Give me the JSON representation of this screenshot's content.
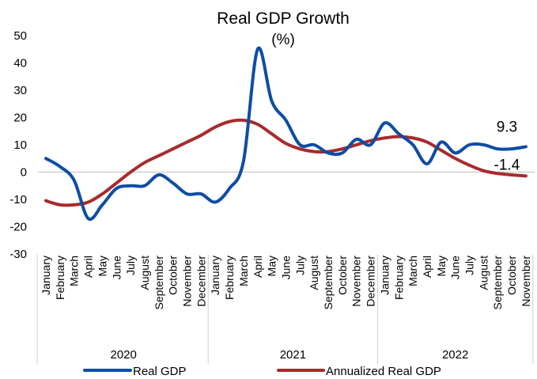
{
  "chart_data": {
    "type": "line",
    "title": "Real GDP Growth",
    "subtitle": "(%)",
    "ylim": [
      -30,
      50
    ],
    "yticks": [
      50,
      40,
      30,
      20,
      10,
      0,
      -10,
      -20,
      -30
    ],
    "categories": [
      "January",
      "February",
      "March",
      "April",
      "May",
      "June",
      "July",
      "August",
      "September",
      "October",
      "November",
      "December",
      "January",
      "February",
      "March",
      "April",
      "May",
      "June",
      "July",
      "August",
      "September",
      "October",
      "November",
      "December",
      "January",
      "February",
      "March",
      "April",
      "May",
      "June",
      "July",
      "August",
      "September",
      "October",
      "November"
    ],
    "years": [
      {
        "label": "2020",
        "count": 12
      },
      {
        "label": "2021",
        "count": 12
      },
      {
        "label": "2022",
        "count": 11
      }
    ],
    "series": [
      {
        "name": "Real GDP",
        "color": "#0E4DA4",
        "values": [
          5,
          2,
          -3,
          -17,
          -12,
          -6,
          -5,
          -5,
          -1,
          -4,
          -8,
          -8,
          -11,
          -6,
          4,
          45,
          26,
          19,
          10,
          10,
          7,
          7,
          12,
          10,
          18,
          14,
          10,
          3,
          11,
          7,
          10,
          10,
          8.5,
          8.5,
          9.3
        ]
      },
      {
        "name": "Annualized Real GDP",
        "color": "#A82A2C",
        "values": [
          -10.5,
          -12,
          -12,
          -11,
          -8,
          -4,
          0,
          3.5,
          6,
          8.5,
          11,
          13.5,
          16.5,
          18.5,
          19,
          17.5,
          14,
          10.5,
          8.5,
          7.5,
          7.5,
          8.5,
          10,
          11.5,
          12.5,
          13,
          12.5,
          11,
          8,
          5,
          2.5,
          0.5,
          -0.5,
          -1,
          -1.4
        ]
      }
    ],
    "data_labels": [
      {
        "series": 0,
        "text": "9.3"
      },
      {
        "series": 1,
        "text": "-1.4"
      }
    ],
    "legend_position": "bottom",
    "grid": false
  }
}
